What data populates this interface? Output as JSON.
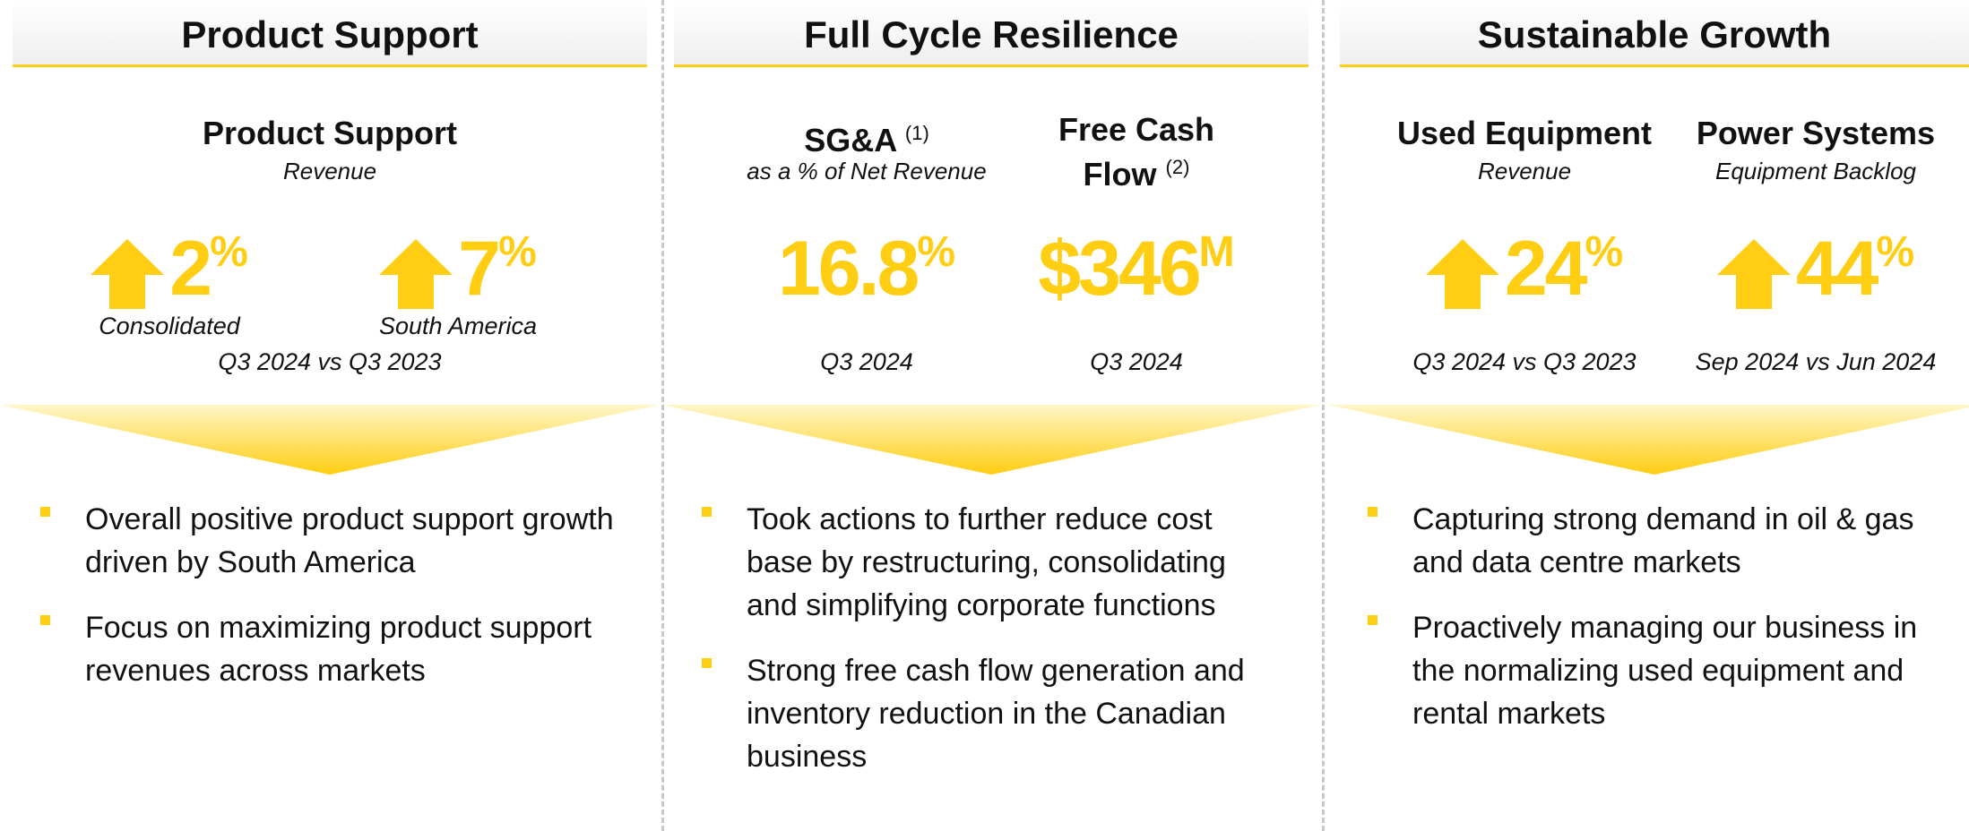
{
  "columns": [
    {
      "title": "Product Support",
      "heading": {
        "label": "Product Support",
        "sublabel": "Revenue"
      },
      "metrics": [
        {
          "arrow": "up",
          "value": "2",
          "unit": "%",
          "caption": "Consolidated"
        },
        {
          "arrow": "up",
          "value": "7",
          "unit": "%",
          "caption": "South America"
        }
      ],
      "period": "Q3 2024 vs Q3 2023",
      "bullets": [
        "Overall positive product support growth driven by South America",
        "Focus on maximizing product support revenues across markets"
      ]
    },
    {
      "title": "Full Cycle Resilience",
      "metrics": [
        {
          "label": "SG&A",
          "sublabel": "as a % of Net Revenue",
          "footnote": "(1)",
          "value": "16.8",
          "unit": "%",
          "caption": "Q3 2024"
        },
        {
          "label": "Free Cash Flow",
          "footnote": "(2)",
          "value": "$346",
          "unit": "M",
          "caption": "Q3 2024"
        }
      ],
      "bullets": [
        "Took actions to further reduce cost base by restructuring, consolidating and simplifying corporate functions",
        "Strong free cash flow generation and inventory reduction in the Canadian business"
      ]
    },
    {
      "title": "Sustainable Growth",
      "metrics": [
        {
          "label": "Used Equipment",
          "sublabel": "Revenue",
          "arrow": "up",
          "value": "24",
          "unit": "%",
          "caption": "Q3 2024 vs Q3 2023"
        },
        {
          "label": "Power Systems",
          "sublabel": "Equipment Backlog",
          "arrow": "up",
          "value": "44",
          "unit": "%",
          "caption": "Sep 2024 vs Jun 2024"
        }
      ],
      "bullets": [
        "Capturing strong demand in oil & gas and data centre markets",
        "Proactively managing our business in the normalizing used equipment and rental markets"
      ]
    }
  ]
}
